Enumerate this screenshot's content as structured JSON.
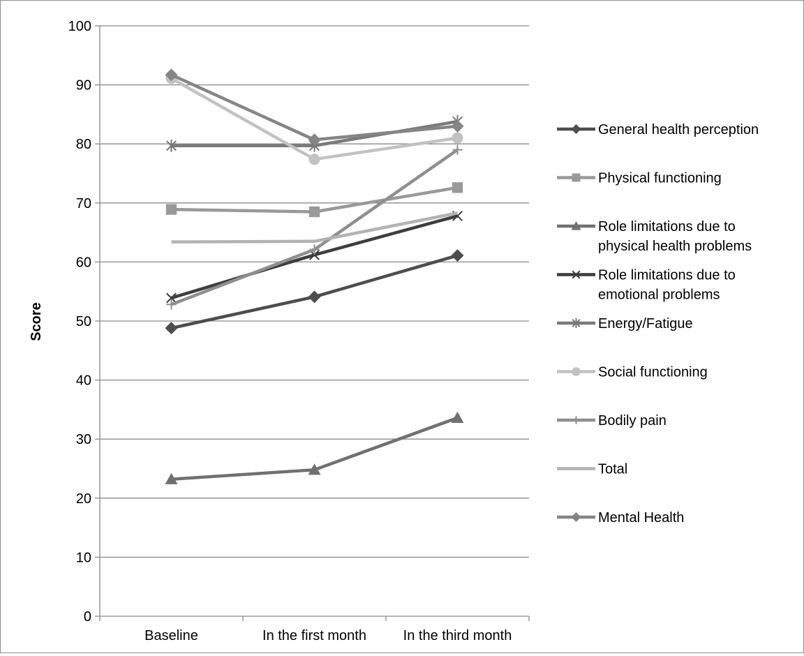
{
  "chart_data": {
    "type": "line",
    "title": "",
    "xlabel": "",
    "ylabel": "Score",
    "ylim": [
      0,
      100
    ],
    "y_ticks": [
      "0",
      "10",
      "20",
      "30",
      "40",
      "50",
      "60",
      "70",
      "80",
      "90",
      "100"
    ],
    "categories": [
      "Baseline",
      "In the first month",
      "In the third month"
    ],
    "grid": "horizontal",
    "legend_position": "right",
    "series": [
      {
        "name": "General health perception",
        "lines": [
          "General health perception"
        ],
        "values": [
          48.8,
          54.1,
          61.1
        ],
        "color": "#4d4d4d",
        "marker": "diamond"
      },
      {
        "name": "Physical functioning",
        "lines": [
          "Physical functioning"
        ],
        "values": [
          68.9,
          68.5,
          72.6
        ],
        "color": "#999999",
        "marker": "square"
      },
      {
        "name": "Role limitations due to physical health problems",
        "lines": [
          "Role limitations due to",
          "physical health problems"
        ],
        "values": [
          23.2,
          24.8,
          33.6
        ],
        "color": "#707070",
        "marker": "triangle"
      },
      {
        "name": "Role limitations due to emotional problems",
        "lines": [
          "Role limitations due to",
          "emotional problems"
        ],
        "values": [
          53.9,
          61.2,
          67.8
        ],
        "color": "#3d3d3d",
        "marker": "x"
      },
      {
        "name": "Energy/Fatigue",
        "lines": [
          "Energy/Fatigue"
        ],
        "values": [
          79.7,
          79.7,
          83.8
        ],
        "color": "#7a7a7a",
        "marker": "star"
      },
      {
        "name": "Social functioning",
        "lines": [
          "Social functioning"
        ],
        "values": [
          91.1,
          77.4,
          81.0
        ],
        "color": "#c2c2c2",
        "marker": "circle"
      },
      {
        "name": "Bodily pain",
        "lines": [
          "Bodily pain"
        ],
        "values": [
          52.8,
          62.1,
          79.0
        ],
        "color": "#8f8f8f",
        "marker": "plus"
      },
      {
        "name": "Total",
        "lines": [
          "Total"
        ],
        "values": [
          63.4,
          63.5,
          68.3
        ],
        "color": "#b3b3b3",
        "marker": "none"
      },
      {
        "name": "Mental Health",
        "lines": [
          "Mental Health"
        ],
        "values": [
          91.7,
          80.7,
          83.0
        ],
        "color": "#858585",
        "marker": "diamond"
      }
    ]
  }
}
